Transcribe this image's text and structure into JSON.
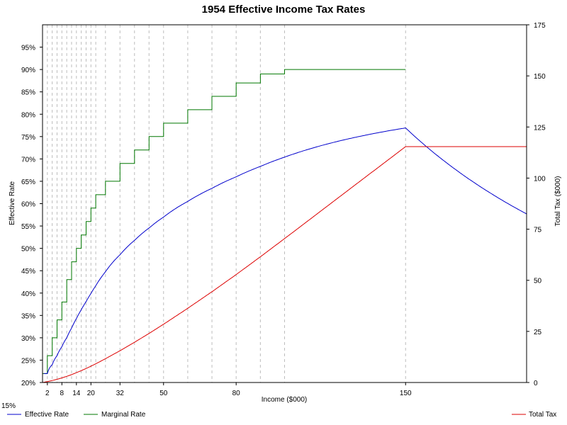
{
  "chart_data": {
    "type": "line",
    "title": "1954 Effective Income Tax Rates",
    "xlabel": "Income ($000)",
    "ylabel_left": "Effective Rate",
    "ylabel_right": "Total Tax ($000)",
    "xlim": [
      0,
      200
    ],
    "ylim_left": [
      0.2,
      1.0
    ],
    "ylim_right": [
      0,
      175
    ],
    "x_ticks": [
      2,
      8,
      14,
      20,
      32,
      50,
      80,
      150
    ],
    "x_tick_labels": [
      "2",
      "8",
      "14",
      "20",
      "32",
      "50",
      "80",
      "150"
    ],
    "left_ticks": [
      0.2,
      0.25,
      0.3,
      0.35,
      0.4,
      0.45,
      0.5,
      0.55,
      0.6,
      0.65,
      0.7,
      0.75,
      0.8,
      0.85,
      0.9,
      0.95
    ],
    "left_tick_labels": [
      "20%",
      "25%",
      "30%",
      "35%",
      "40%",
      "45%",
      "50%",
      "55%",
      "60%",
      "65%",
      "70%",
      "75%",
      "80%",
      "85%",
      "90%",
      "95%"
    ],
    "left_bottom_extra_label": "15%",
    "right_ticks": [
      0,
      25,
      50,
      75,
      100,
      125,
      150,
      175
    ],
    "right_tick_labels": [
      "0",
      "25",
      "50",
      "75",
      "100",
      "125",
      "150",
      "175"
    ],
    "bracket_boundaries": [
      2,
      4,
      6,
      8,
      10,
      12,
      14,
      16,
      18,
      20,
      22,
      26,
      32,
      38,
      44,
      50,
      60,
      70,
      80,
      90,
      100,
      150,
      200
    ],
    "marginal_rates": [
      0.22,
      0.26,
      0.3,
      0.34,
      0.38,
      0.43,
      0.47,
      0.5,
      0.53,
      0.56,
      0.59,
      0.62,
      0.65,
      0.69,
      0.72,
      0.75,
      0.78,
      0.81,
      0.84,
      0.87,
      0.89,
      0.9
    ],
    "grid": "vertical dashed at bracket boundaries",
    "legend_placement": "bottom",
    "series": [
      {
        "name": "Effective Rate",
        "axis": "left",
        "color": "#0000cc"
      },
      {
        "name": "Marginal Rate",
        "axis": "left",
        "color": "#007700"
      },
      {
        "name": "Total Tax",
        "axis": "right",
        "color": "#dd0000"
      }
    ]
  }
}
